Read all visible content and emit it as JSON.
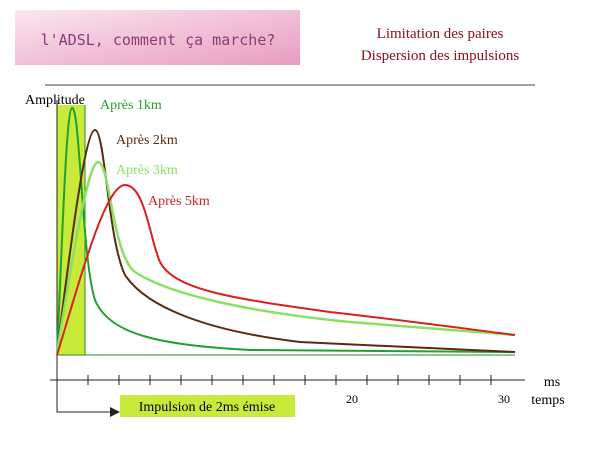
{
  "banner": "l'ADSL, comment ça marche?",
  "title": [
    "Limitation des paires",
    "Dispersion des impulsions"
  ],
  "y_axis_label": "Amplitude",
  "x_axis_label": [
    "ms",
    "temps"
  ],
  "x_tick_labels": [
    "20",
    "30"
  ],
  "curve_labels": [
    "Après 1km",
    "Après 2km",
    "Après 3km",
    "Après 5km"
  ],
  "pulse_label": "Impulsion de 2ms émise"
}
